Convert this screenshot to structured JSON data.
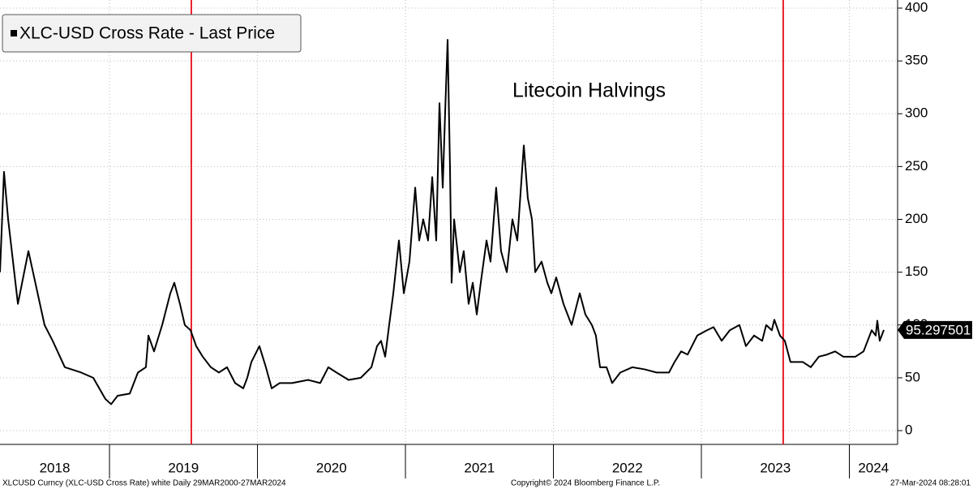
{
  "chart_data": {
    "type": "line",
    "annotation": "Litecoin Halvings",
    "series": [
      {
        "name": "XLC-USD Cross Rate - Last Price",
        "color": "#000000",
        "x": [
          2018.26,
          2018.287,
          2018.315,
          2018.381,
          2018.452,
          2018.561,
          2018.616,
          2018.698,
          2018.808,
          2018.89,
          2018.972,
          2019.011,
          2019.055,
          2019.137,
          2019.192,
          2019.246,
          2019.263,
          2019.301,
          2019.356,
          2019.411,
          2019.438,
          2019.476,
          2019.509,
          2019.548,
          2019.586,
          2019.63,
          2019.685,
          2019.739,
          2019.794,
          2019.849,
          2019.904,
          2019.931,
          2019.959,
          2020.013,
          2020.057,
          2020.096,
          2020.15,
          2020.233,
          2020.342,
          2020.424,
          2020.479,
          2020.534,
          2020.616,
          2020.698,
          2020.77,
          2020.808,
          2020.835,
          2020.863,
          2020.89,
          2020.918,
          2020.956,
          2020.989,
          2021.027,
          2021.066,
          2021.093,
          2021.12,
          2021.153,
          2021.181,
          2021.208,
          2021.23,
          2021.252,
          2021.268,
          2021.285,
          2021.301,
          2021.312,
          2021.329,
          2021.367,
          2021.394,
          2021.427,
          2021.455,
          2021.482,
          2021.509,
          2021.548,
          2021.575,
          2021.613,
          2021.646,
          2021.685,
          2021.723,
          2021.756,
          2021.8,
          2021.827,
          2021.855,
          2021.877,
          2021.92,
          2021.959,
          2021.986,
          2022.019,
          2022.068,
          2022.123,
          2022.178,
          2022.216,
          2022.26,
          2022.287,
          2022.315,
          2022.359,
          2022.397,
          2022.452,
          2022.534,
          2022.616,
          2022.698,
          2022.781,
          2022.819,
          2022.863,
          2022.907,
          2022.972,
          2023.038,
          2023.082,
          2023.137,
          2023.192,
          2023.257,
          2023.301,
          2023.356,
          2023.411,
          2023.438,
          2023.476,
          2023.493,
          2023.531,
          2023.564,
          2023.602,
          2023.685,
          2023.739,
          2023.794,
          2023.849,
          2023.904,
          2023.959,
          2024.041,
          2024.096,
          2024.151,
          2024.178,
          2024.189,
          2024.205,
          2024.233
        ],
        "values": [
          150,
          245,
          200,
          120,
          170,
          100,
          85,
          60,
          55,
          50,
          30,
          25,
          33,
          35,
          55,
          60,
          90,
          75,
          100,
          130,
          140,
          120,
          100,
          95,
          80,
          70,
          60,
          55,
          60,
          45,
          40,
          50,
          65,
          80,
          60,
          40,
          45,
          45,
          48,
          45,
          60,
          55,
          48,
          50,
          60,
          80,
          85,
          70,
          100,
          130,
          180,
          130,
          160,
          230,
          180,
          200,
          180,
          240,
          180,
          310,
          230,
          300,
          370,
          250,
          140,
          200,
          150,
          170,
          120,
          140,
          110,
          140,
          180,
          160,
          230,
          170,
          150,
          200,
          180,
          270,
          220,
          200,
          150,
          160,
          140,
          130,
          145,
          120,
          100,
          130,
          110,
          100,
          90,
          60,
          60,
          45,
          55,
          60,
          58,
          55,
          55,
          65,
          75,
          72,
          90,
          95,
          98,
          85,
          95,
          100,
          80,
          90,
          85,
          100,
          95,
          105,
          90,
          85,
          65,
          65,
          60,
          70,
          72,
          75,
          70,
          70,
          75,
          95,
          90,
          104,
          85,
          95.297501
        ]
      }
    ],
    "halvings": {
      "x": [
        2019.553,
        2023.553
      ],
      "color": "#e8202a"
    },
    "xlim": [
      2018.26,
      2024.326
    ],
    "xticks": [
      2018,
      2019,
      2020,
      2021,
      2022,
      2023,
      2024
    ],
    "ylim": [
      0,
      400
    ],
    "yticks": [
      0,
      50,
      100,
      150,
      200,
      250,
      300,
      350,
      400
    ],
    "grid": true
  },
  "footer": {
    "left": "XLCUSD Curncy (XLC-USD Cross Rate) white  Daily 29MAR2000-27MAR2024",
    "center": "Copyright© 2024 Bloomberg Finance L.P.",
    "right": "27-Mar-2024 08:28:01"
  }
}
